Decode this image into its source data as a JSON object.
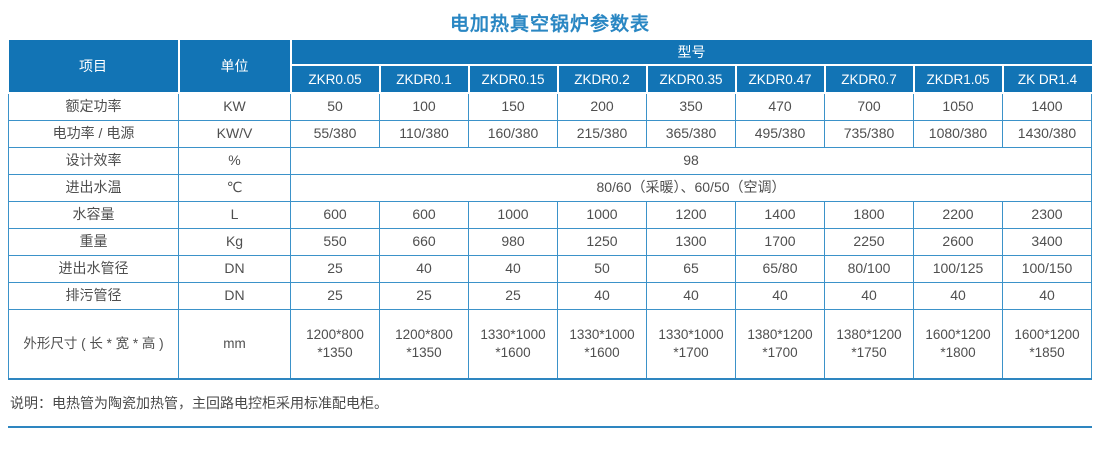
{
  "title": "电加热真空锅炉参数表",
  "colors": {
    "header_bg": "#1274b5",
    "title_text": "#2a87c3",
    "grid_border": "#3b92c9",
    "body_text": "#4f4f4f"
  },
  "table": {
    "header": {
      "item_label": "项目",
      "unit_label": "单位",
      "model_label": "型号",
      "models": [
        "ZKR0.05",
        "ZKDR0.1",
        "ZKDR0.15",
        "ZKDR0.2",
        "ZKDR0.35",
        "ZKDR0.47",
        "ZKDR0.7",
        "ZKDR1.05",
        "ZK DR1.4"
      ]
    },
    "rows": [
      {
        "item": "额定功率",
        "unit": "KW",
        "values": [
          "50",
          "100",
          "150",
          "200",
          "350",
          "470",
          "700",
          "1050",
          "1400"
        ]
      },
      {
        "item": "电功率 / 电源",
        "unit": "KW/V",
        "values": [
          "55/380",
          "110/380",
          "160/380",
          "215/380",
          "365/380",
          "495/380",
          "735/380",
          "1080/380",
          "1430/380"
        ]
      },
      {
        "item": "设计效率",
        "unit": "%",
        "span": "98"
      },
      {
        "item": "进出水温",
        "unit": "℃",
        "span": "80/60（采暖）、60/50（空调）"
      },
      {
        "item": "水容量",
        "unit": "L",
        "values": [
          "600",
          "600",
          "1000",
          "1000",
          "1200",
          "1400",
          "1800",
          "2200",
          "2300"
        ]
      },
      {
        "item": "重量",
        "unit": "Kg",
        "values": [
          "550",
          "660",
          "980",
          "1250",
          "1300",
          "1700",
          "2250",
          "2600",
          "3400"
        ]
      },
      {
        "item": "进出水管径",
        "unit": "DN",
        "values": [
          "25",
          "40",
          "40",
          "50",
          "65",
          "65/80",
          "80/100",
          "100/125",
          "100/150"
        ]
      },
      {
        "item": "排污管径",
        "unit": "DN",
        "values": [
          "25",
          "25",
          "25",
          "40",
          "40",
          "40",
          "40",
          "40",
          "40"
        ]
      },
      {
        "item": "外形尺寸 ( 长 * 宽 * 高 )",
        "unit": "mm",
        "values": [
          "1200*800\n*1350",
          "1200*800\n*1350",
          "1330*1000\n*1600",
          "1330*1000\n*1600",
          "1330*1000\n*1700",
          "1380*1200\n*1700",
          "1380*1200\n*1750",
          "1600*1200\n*1800",
          "1600*1200\n*1850"
        ]
      }
    ]
  },
  "note": "说明：电热管为陶瓷加热管，主回路电控柜采用标准配电柜。"
}
